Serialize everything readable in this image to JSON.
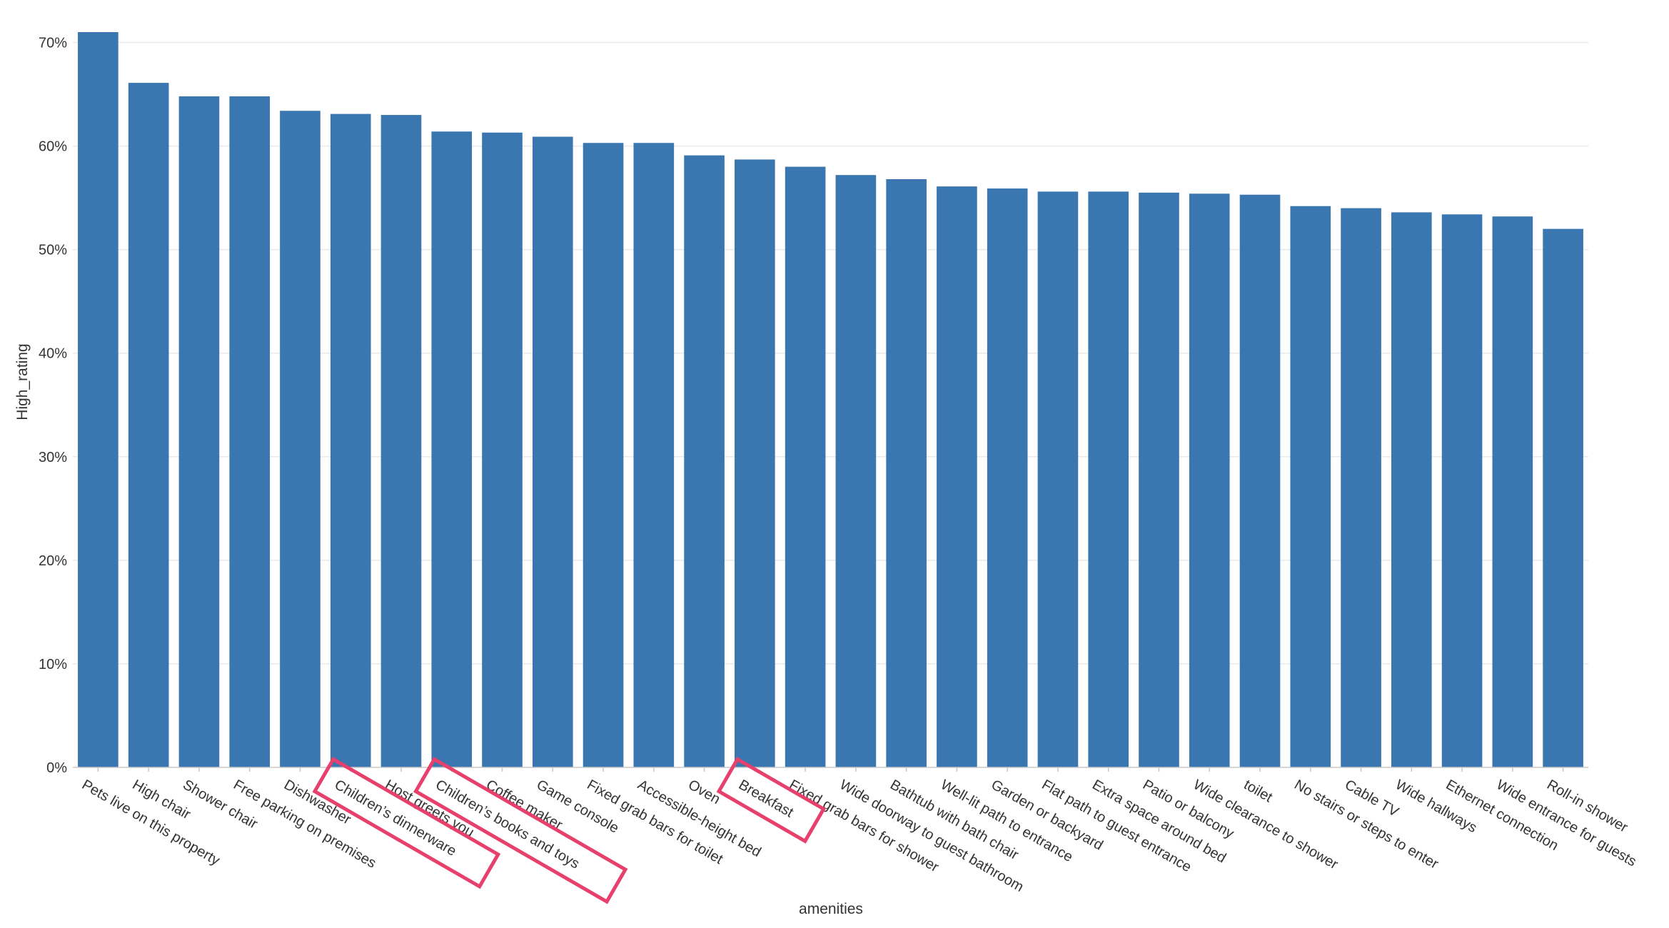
{
  "chart_data": {
    "type": "bar",
    "xlabel": "amenities",
    "ylabel": "High_rating",
    "ylim": [
      0,
      0.71
    ],
    "yticks": [
      0,
      0.1,
      0.2,
      0.3,
      0.4,
      0.5,
      0.6,
      0.7
    ],
    "ytick_labels": [
      "0%",
      "10%",
      "20%",
      "30%",
      "40%",
      "50%",
      "60%",
      "70%"
    ],
    "grid": true,
    "bar_color": "#3a76b0",
    "highlight_color": "#e8406c",
    "categories": [
      "Pets live on this property",
      "High chair",
      "Shower chair",
      "Free parking on premises",
      "Dishwasher",
      "Children’s dinnerware",
      "Host greets you",
      "Children’s books and toys",
      "Coffee maker",
      "Game console",
      "Fixed grab bars for toilet",
      "Accessible-height bed",
      "Oven",
      "Breakfast",
      "Fixed grab bars for shower",
      "Wide doorway to guest bathroom",
      "Bathtub with bath chair",
      "Well-lit path to entrance",
      "Garden or backyard",
      "Flat path to guest entrance",
      "Extra space around bed",
      "Patio or balcony",
      "Wide clearance to shower",
      "toilet",
      "No stairs or steps to enter",
      "Cable TV",
      "Wide hallways",
      "Ethernet connection",
      "Wide entrance for guests",
      "Roll-in shower"
    ],
    "values": [
      0.71,
      0.661,
      0.648,
      0.648,
      0.634,
      0.631,
      0.63,
      0.614,
      0.613,
      0.609,
      0.603,
      0.603,
      0.591,
      0.587,
      0.58,
      0.572,
      0.568,
      0.561,
      0.559,
      0.556,
      0.556,
      0.555,
      0.554,
      0.553,
      0.542,
      0.54,
      0.536,
      0.534,
      0.532,
      0.52
    ],
    "highlighted_categories": [
      "Children’s dinnerware",
      "Children’s books and toys",
      "Breakfast"
    ]
  }
}
